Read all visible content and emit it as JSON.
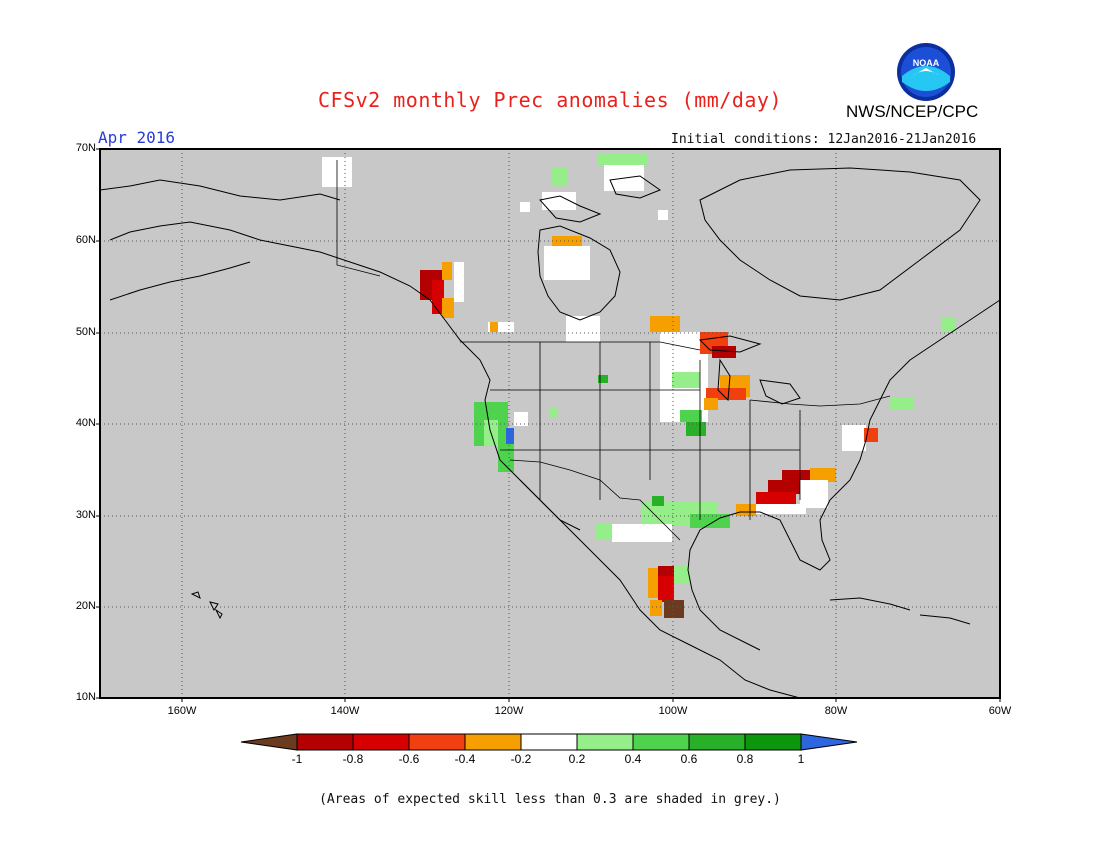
{
  "header": {
    "title": "CFSv2 monthly Prec anomalies (mm/day)",
    "organization": "NWS/NCEP/CPC",
    "logo_text": "NOAA",
    "month": "Apr 2016",
    "initial_conditions": "Initial conditions: 12Jan2016-21Jan2016"
  },
  "axes": {
    "lat_labels": [
      "70N",
      "60N",
      "50N",
      "40N",
      "30N",
      "20N",
      "10N"
    ],
    "lon_labels": [
      "160W",
      "140W",
      "120W",
      "100W",
      "80W",
      "60W"
    ]
  },
  "colorbar": {
    "tick_labels": [
      "-1",
      "-0.8",
      "-0.6",
      "-0.4",
      "-0.2",
      "0.2",
      "0.4",
      "0.6",
      "0.8",
      "1"
    ],
    "colors": [
      "#6b3a1f",
      "#b30000",
      "#d60000",
      "#f0400f",
      "#f5a000",
      "#ffffff",
      "#96ee8a",
      "#4fd34f",
      "#28b028",
      "#0c960c",
      "#2e66e0"
    ]
  },
  "footer": {
    "note": "(Areas of expected skill less than 0.3 are shaded in grey.)"
  },
  "map_style": {
    "background": "#c8c8c8",
    "grid": "dotted"
  }
}
